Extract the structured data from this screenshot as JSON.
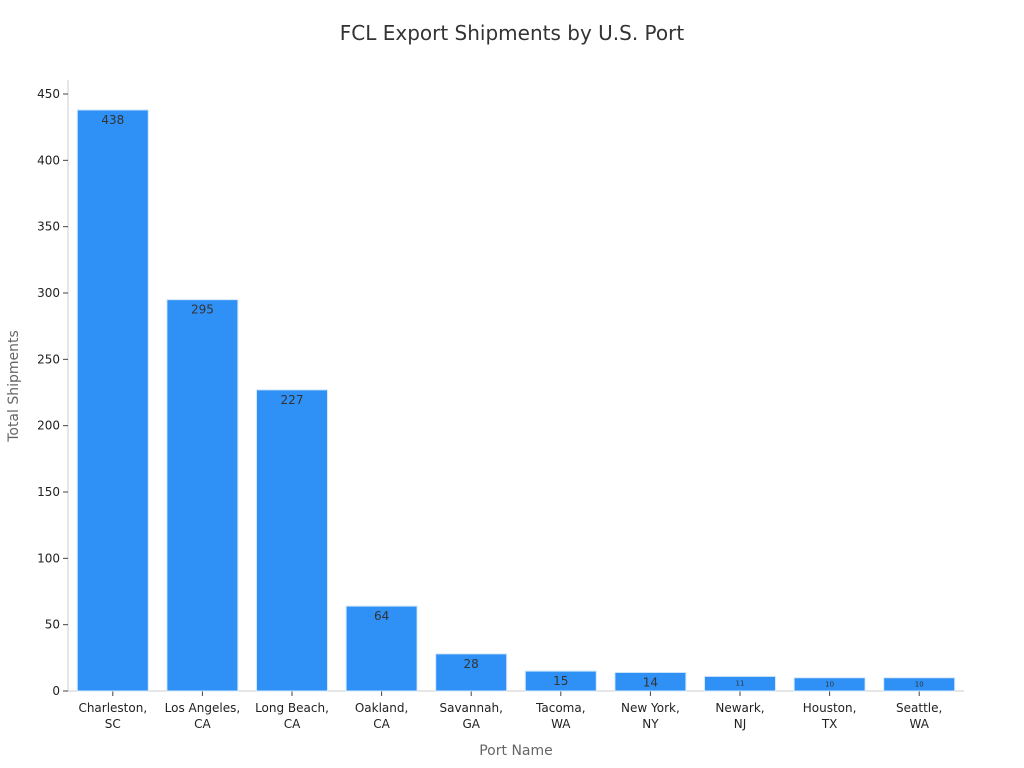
{
  "chart_data": {
    "type": "bar",
    "title": "FCL Export Shipments by U.S. Port",
    "xlabel": "Port Name",
    "ylabel": "Total Shipments",
    "categories": [
      [
        "Charleston,",
        "SC"
      ],
      [
        "Los Angeles,",
        "CA"
      ],
      [
        "Long Beach,",
        "CA"
      ],
      [
        "Oakland,",
        "CA"
      ],
      [
        "Savannah,",
        "GA"
      ],
      [
        "Tacoma,",
        "WA"
      ],
      [
        "New York,",
        "NY"
      ],
      [
        "Newark,",
        "NJ"
      ],
      [
        "Houston,",
        "TX"
      ],
      [
        "Seattle,",
        "WA"
      ]
    ],
    "values": [
      438,
      295,
      227,
      64,
      28,
      15,
      14,
      11,
      10,
      10
    ],
    "yticks": [
      0,
      50,
      100,
      150,
      200,
      250,
      300,
      350,
      400,
      450
    ],
    "ylim": [
      0,
      460
    ],
    "grid": false,
    "bar_color": "#2f91f6"
  }
}
